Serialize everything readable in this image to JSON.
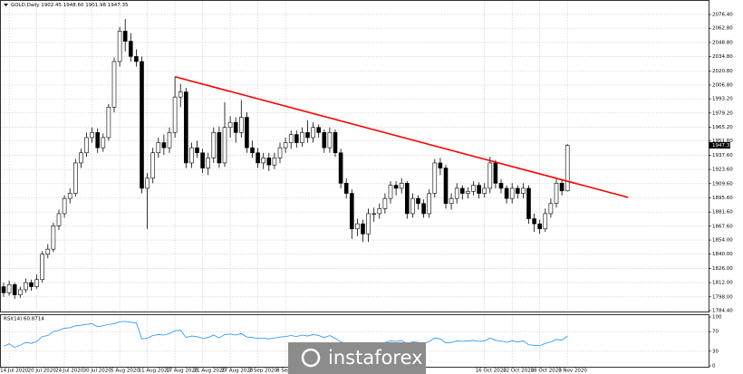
{
  "chart_data": {
    "type": "candlestick",
    "title": "GOLD,Daily  1902.45 1948.60 1901.98 1947.35",
    "grid": true,
    "bull_color": "#ffffff",
    "bear_color": "#000000",
    "ylim": [
      1784.4,
      2087.1
    ],
    "yticks": [
      {
        "value": 2076.4,
        "label": "2076.40"
      },
      {
        "value": 2062.8,
        "label": "2062.80"
      },
      {
        "value": 2048.8,
        "label": "2048.80"
      },
      {
        "value": 2034.8,
        "label": "2034.80"
      },
      {
        "value": 2020.8,
        "label": "2020.80"
      },
      {
        "value": 2006.8,
        "label": "2006.80"
      },
      {
        "value": 1993.2,
        "label": "1993.20"
      },
      {
        "value": 1979.2,
        "label": "1979.20"
      },
      {
        "value": 1965.2,
        "label": "1965.20"
      },
      {
        "value": 1951.6,
        "label": "1951.60"
      },
      {
        "value": 1937.6,
        "label": "1937.60"
      },
      {
        "value": 1923.6,
        "label": "1923.60"
      },
      {
        "value": 1909.6,
        "label": "1909.60"
      },
      {
        "value": 1895.6,
        "label": "1895.60"
      },
      {
        "value": 1881.6,
        "label": "1881.60"
      },
      {
        "value": 1867.6,
        "label": "1867.60"
      },
      {
        "value": 1854,
        "label": "1854.00"
      },
      {
        "value": 1840,
        "label": "1840.00"
      },
      {
        "value": 1826,
        "label": "1826.00"
      },
      {
        "value": 1812,
        "label": "1812.00"
      },
      {
        "value": 1798,
        "label": "1798.00"
      },
      {
        "value": 1784.4,
        "label": "1784.40"
      }
    ],
    "last_price_label": "1947.35",
    "categories": [
      null,
      "14 Jul 2020",
      null,
      null,
      null,
      null,
      "20 Jul 2020",
      null,
      null,
      null,
      null,
      "24 Jul 2020",
      null,
      null,
      null,
      null,
      "30 Jul 2020",
      null,
      null,
      null,
      null,
      "5 Aug 2020",
      null,
      null,
      null,
      null,
      "11 Aug 2020",
      null,
      null,
      null,
      null,
      "17 Aug 2020",
      null,
      null,
      null,
      null,
      "21 Aug 2020",
      null,
      null,
      null,
      null,
      "27 Aug 2020",
      null,
      null,
      null,
      null,
      "2 Sep 2020",
      null,
      null,
      null,
      null,
      "8 Sep 2020",
      null,
      null,
      null,
      null,
      null,
      null,
      null,
      null,
      null,
      null,
      null,
      null,
      null,
      null,
      null,
      null,
      null,
      null,
      null,
      null,
      null,
      null,
      null,
      null,
      null,
      null,
      null,
      null,
      null,
      null,
      null,
      null,
      null,
      null,
      null,
      "16 Oct 2020",
      null,
      null,
      null,
      null,
      "22 Oct 2020",
      null,
      null,
      null,
      null,
      "28 Oct 2020",
      null,
      null,
      null,
      null,
      "3 Nov 2020",
      null
    ],
    "candles": [
      [
        1808,
        1812,
        1798,
        1802
      ],
      [
        1802,
        1814,
        1799,
        1810
      ],
      [
        1810,
        1812,
        1796,
        1800
      ],
      [
        1800,
        1808,
        1797,
        1805
      ],
      [
        1805,
        1816,
        1802,
        1812
      ],
      [
        1812,
        1815,
        1804,
        1808
      ],
      [
        1808,
        1820,
        1806,
        1815
      ],
      [
        1815,
        1843,
        1812,
        1840
      ],
      [
        1840,
        1850,
        1836,
        1845
      ],
      [
        1845,
        1871,
        1842,
        1868
      ],
      [
        1868,
        1884,
        1864,
        1880
      ],
      [
        1880,
        1898,
        1876,
        1895
      ],
      [
        1895,
        1905,
        1890,
        1900
      ],
      [
        1900,
        1934,
        1897,
        1930
      ],
      [
        1930,
        1944,
        1925,
        1940
      ],
      [
        1940,
        1960,
        1936,
        1955
      ],
      [
        1955,
        1965,
        1950,
        1960
      ],
      [
        1960,
        1964,
        1940,
        1945
      ],
      [
        1945,
        1959,
        1941,
        1955
      ],
      [
        1955,
        1988,
        1952,
        1985
      ],
      [
        1985,
        2034,
        1980,
        2030
      ],
      [
        2030,
        2064,
        2025,
        2060
      ],
      [
        2060,
        2072,
        2040,
        2050
      ],
      [
        2050,
        2058,
        2030,
        2035
      ],
      [
        2035,
        2042,
        2025,
        2030
      ],
      [
        2030,
        2035,
        1900,
        1905
      ],
      [
        1905,
        1920,
        1865,
        1915
      ],
      [
        1915,
        1945,
        1910,
        1940
      ],
      [
        1940,
        1955,
        1935,
        1950
      ],
      [
        1950,
        1958,
        1938,
        1945
      ],
      [
        1945,
        1965,
        1940,
        1960
      ],
      [
        1960,
        2015,
        1955,
        1995
      ],
      [
        1995,
        2008,
        1985,
        2000
      ],
      [
        2000,
        2004,
        1925,
        1930
      ],
      [
        1930,
        1950,
        1925,
        1945
      ],
      [
        1945,
        1952,
        1935,
        1940
      ],
      [
        1940,
        1944,
        1920,
        1925
      ],
      [
        1925,
        1940,
        1918,
        1935
      ],
      [
        1935,
        1965,
        1930,
        1960
      ],
      [
        1960,
        1966,
        1925,
        1930
      ],
      [
        1930,
        1990,
        1926,
        1965
      ],
      [
        1965,
        1976,
        1955,
        1970
      ],
      [
        1970,
        1975,
        1950,
        1960
      ],
      [
        1960,
        1992,
        1955,
        1975
      ],
      [
        1975,
        1980,
        1940,
        1945
      ],
      [
        1945,
        1952,
        1935,
        1940
      ],
      [
        1940,
        1945,
        1925,
        1930
      ],
      [
        1930,
        1940,
        1924,
        1935
      ],
      [
        1935,
        1940,
        1922,
        1928
      ],
      [
        1928,
        1940,
        1924,
        1935
      ],
      [
        1935,
        1950,
        1930,
        1945
      ],
      [
        1945,
        1955,
        1940,
        1950
      ],
      [
        1950,
        1962,
        1944,
        1958
      ],
      [
        1958,
        1962,
        1945,
        1950
      ],
      [
        1950,
        1965,
        1946,
        1960
      ],
      [
        1960,
        1972,
        1950,
        1955
      ],
      [
        1955,
        1970,
        1950,
        1965
      ],
      [
        1965,
        1968,
        1955,
        1960
      ],
      [
        1960,
        1963,
        1940,
        1945
      ],
      [
        1945,
        1965,
        1940,
        1960
      ],
      [
        1960,
        1963,
        1936,
        1940
      ],
      [
        1940,
        1944,
        1905,
        1910
      ],
      [
        1910,
        1915,
        1895,
        1900
      ],
      [
        1900,
        1904,
        1855,
        1865
      ],
      [
        1865,
        1875,
        1858,
        1870
      ],
      [
        1870,
        1874,
        1852,
        1860
      ],
      [
        1860,
        1885,
        1852,
        1880
      ],
      [
        1880,
        1886,
        1872,
        1880
      ],
      [
        1880,
        1890,
        1875,
        1885
      ],
      [
        1885,
        1900,
        1880,
        1895
      ],
      [
        1895,
        1912,
        1890,
        1908
      ],
      [
        1908,
        1912,
        1898,
        1905
      ],
      [
        1905,
        1915,
        1900,
        1910
      ],
      [
        1910,
        1912,
        1875,
        1880
      ],
      [
        1880,
        1900,
        1876,
        1895
      ],
      [
        1895,
        1898,
        1884,
        1890
      ],
      [
        1890,
        1894,
        1876,
        1880
      ],
      [
        1880,
        1904,
        1876,
        1900
      ],
      [
        1900,
        1934,
        1896,
        1930
      ],
      [
        1930,
        1935,
        1918,
        1925
      ],
      [
        1925,
        1928,
        1885,
        1890
      ],
      [
        1890,
        1900,
        1884,
        1895
      ],
      [
        1895,
        1910,
        1890,
        1905
      ],
      [
        1905,
        1908,
        1894,
        1900
      ],
      [
        1900,
        1906,
        1895,
        1902
      ],
      [
        1902,
        1912,
        1898,
        1908
      ],
      [
        1908,
        1911,
        1895,
        1900
      ],
      [
        1900,
        1910,
        1896,
        1905
      ],
      [
        1905,
        1936,
        1900,
        1930
      ],
      [
        1930,
        1933,
        1905,
        1910
      ],
      [
        1910,
        1914,
        1900,
        1905
      ],
      [
        1905,
        1908,
        1890,
        1895
      ],
      [
        1895,
        1910,
        1890,
        1905
      ],
      [
        1905,
        1908,
        1895,
        1900
      ],
      [
        1900,
        1910,
        1895,
        1905
      ],
      [
        1905,
        1908,
        1870,
        1875
      ],
      [
        1875,
        1880,
        1862,
        1870
      ],
      [
        1870,
        1874,
        1860,
        1865
      ],
      [
        1865,
        1885,
        1862,
        1880
      ],
      [
        1880,
        1895,
        1876,
        1890
      ],
      [
        1890,
        1914,
        1886,
        1910
      ],
      [
        1910,
        1914,
        1898,
        1902.45
      ],
      [
        1902.45,
        1948.6,
        1901.98,
        1947.35
      ]
    ],
    "trendline": {
      "x": [
        31,
        113
      ],
      "values": [
        2015,
        1896
      ],
      "color": "#ff0000"
    },
    "rsi": {
      "title": "RSI(14) 60.8714",
      "color": "#1e90ff",
      "ylim": [
        0,
        100
      ],
      "yticks": [
        100,
        70,
        30,
        0
      ],
      "values": [
        40,
        45,
        38,
        42,
        48,
        46,
        50,
        60,
        62,
        70,
        73,
        77,
        78,
        82,
        83,
        85,
        86,
        80,
        82,
        85,
        86,
        90,
        91,
        89,
        88,
        55,
        57,
        62,
        64,
        63,
        66,
        72,
        73,
        58,
        61,
        60,
        56,
        58,
        63,
        57,
        64,
        65,
        63,
        66,
        59,
        58,
        56,
        57,
        55,
        57,
        59,
        60,
        62,
        60,
        63,
        61,
        64,
        62,
        58,
        62,
        56,
        49,
        46,
        40,
        41,
        39,
        44,
        44,
        45,
        48,
        51,
        50,
        52,
        45,
        49,
        48,
        45,
        50,
        57,
        55,
        47,
        48,
        51,
        50,
        51,
        52,
        50,
        51,
        57,
        52,
        51,
        48,
        51,
        49,
        51,
        43,
        42,
        41,
        46,
        49,
        54,
        52.5,
        60.8714
      ]
    },
    "watermark": "instaforex"
  }
}
